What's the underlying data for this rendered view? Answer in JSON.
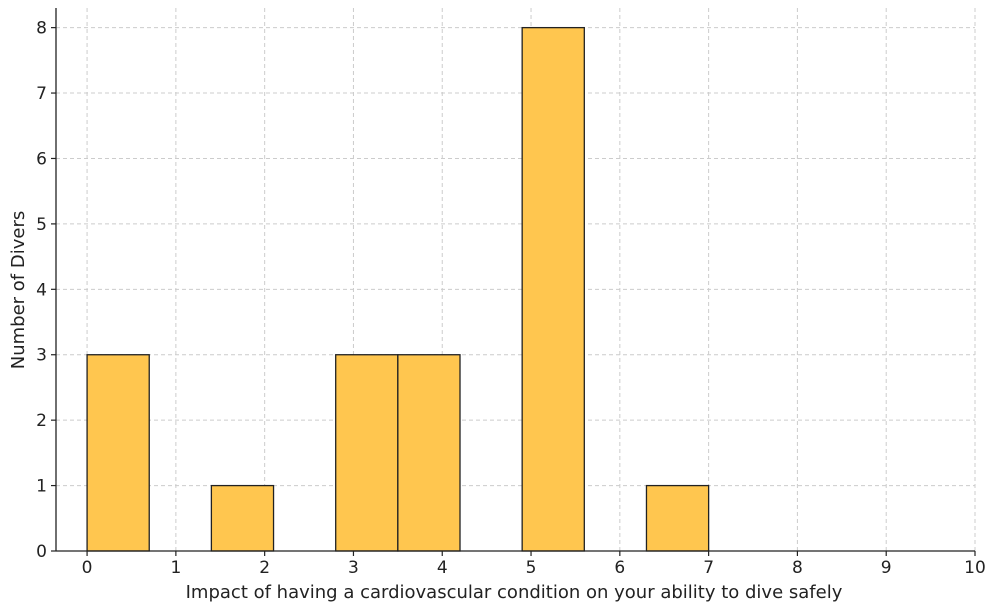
{
  "chart_data": {
    "type": "bar",
    "title": "",
    "xlabel": "Impact of having a cardiovascular condition on your ability to dive safely",
    "ylabel": "Number of Divers",
    "xlim": [
      -0.35,
      10
    ],
    "ylim": [
      0,
      8.3
    ],
    "x_ticks": [
      "0",
      "1",
      "2",
      "3",
      "4",
      "5",
      "6",
      "7",
      "8",
      "9",
      "10"
    ],
    "y_ticks": [
      "0",
      "1",
      "2",
      "3",
      "4",
      "5",
      "6",
      "7",
      "8"
    ],
    "bins": [
      {
        "start": 0.0,
        "end": 0.7,
        "count": 3
      },
      {
        "start": 1.4,
        "end": 2.1,
        "count": 1
      },
      {
        "start": 2.8,
        "end": 3.5,
        "count": 3
      },
      {
        "start": 3.5,
        "end": 4.2,
        "count": 3
      },
      {
        "start": 4.9,
        "end": 5.6,
        "count": 8
      },
      {
        "start": 6.3,
        "end": 7.0,
        "count": 1
      }
    ],
    "grid": true,
    "bar_color": "#FFC64F",
    "edge_color": "#222222",
    "grid_color": "#CCCCCC"
  }
}
